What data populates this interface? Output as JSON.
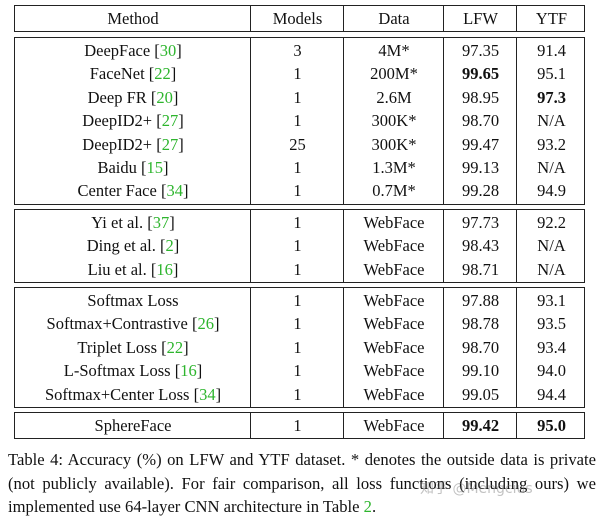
{
  "table": {
    "header": [
      "Method",
      "Models",
      "Data",
      "LFW",
      "YTF"
    ],
    "groups": [
      [
        {
          "method": "DeepFace",
          "cite": "[30]",
          "models": "3",
          "data": "4M*",
          "lfw": "97.35",
          "ytf": "91.4"
        },
        {
          "method": "FaceNet",
          "cite": "[22]",
          "models": "1",
          "data": "200M*",
          "lfw": "99.65",
          "ytf": "95.1",
          "bold": [
            "lfw"
          ]
        },
        {
          "method": "Deep FR",
          "cite": "[20]",
          "models": "1",
          "data": "2.6M",
          "lfw": "98.95",
          "ytf": "97.3",
          "bold": [
            "ytf"
          ]
        },
        {
          "method": "DeepID2+",
          "cite": "[27]",
          "models": "1",
          "data": "300K*",
          "lfw": "98.70",
          "ytf": "N/A"
        },
        {
          "method": "DeepID2+",
          "cite": "[27]",
          "models": "25",
          "data": "300K*",
          "lfw": "99.47",
          "ytf": "93.2"
        },
        {
          "method": "Baidu",
          "cite": "[15]",
          "models": "1",
          "data": "1.3M*",
          "lfw": "99.13",
          "ytf": "N/A"
        },
        {
          "method": "Center Face",
          "cite": "[34]",
          "models": "1",
          "data": "0.7M*",
          "lfw": "99.28",
          "ytf": "94.9"
        }
      ],
      [
        {
          "method": "Yi et al.",
          "cite": "[37]",
          "models": "1",
          "data": "WebFace",
          "lfw": "97.73",
          "ytf": "92.2"
        },
        {
          "method": "Ding et al.",
          "cite": "[2]",
          "models": "1",
          "data": "WebFace",
          "lfw": "98.43",
          "ytf": "N/A"
        },
        {
          "method": "Liu et al.",
          "cite": "[16]",
          "models": "1",
          "data": "WebFace",
          "lfw": "98.71",
          "ytf": "N/A"
        }
      ],
      [
        {
          "method": "Softmax Loss",
          "models": "1",
          "data": "WebFace",
          "lfw": "97.88",
          "ytf": "93.1"
        },
        {
          "method": "Softmax+Contrastive",
          "cite": "[26]",
          "models": "1",
          "data": "WebFace",
          "lfw": "98.78",
          "ytf": "93.5"
        },
        {
          "method": "Triplet Loss",
          "cite": "[22]",
          "models": "1",
          "data": "WebFace",
          "lfw": "98.70",
          "ytf": "93.4"
        },
        {
          "method": "L-Softmax Loss",
          "cite": "[16]",
          "models": "1",
          "data": "WebFace",
          "lfw": "99.10",
          "ytf": "94.0"
        },
        {
          "method": "Softmax+Center Loss",
          "cite": "[34]",
          "models": "1",
          "data": "WebFace",
          "lfw": "99.05",
          "ytf": "94.4"
        }
      ],
      [
        {
          "method": "SphereFace",
          "models": "1",
          "data": "WebFace",
          "lfw": "99.42",
          "ytf": "95.0",
          "bold": [
            "lfw",
            "ytf"
          ]
        }
      ]
    ]
  },
  "caption": [
    "Table 4: Accuracy (%) on LFW and YTF dataset. * denotes the outside data is private (not publicly available). For fair comparison, all loss functions (including ours) we implemented use 64-layer CNN architecture in Table ",
    "2",
    "."
  ],
  "watermark": "知乎 @Mengcius"
}
